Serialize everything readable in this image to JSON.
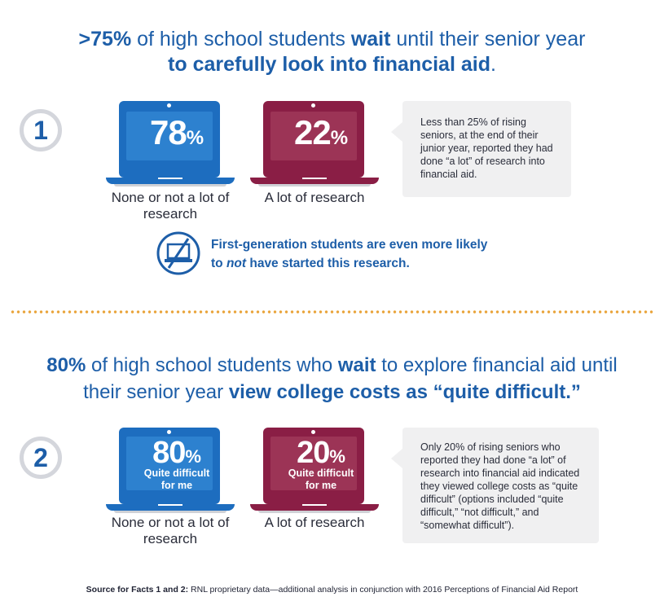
{
  "fact1": {
    "headline": {
      "line1_bold_a": ">75%",
      "line1_text": " of high school students ",
      "line1_bold_b": "wait",
      "line1_text_b": " until their senior year",
      "line2_bold": "to carefully look into financial aid",
      "line2_end": "."
    },
    "number": "1",
    "laptops": [
      {
        "value": "78",
        "symbol": "%",
        "caption": "None or not a lot of research"
      },
      {
        "value": "22",
        "symbol": "%",
        "caption": "A lot of research"
      }
    ],
    "note": "Less than 25% of rising seniors, at the end of their junior year, reported they had done “a lot” of research into financial aid.",
    "first_gen": {
      "line1": "First-generation students are even more likely",
      "line2_pre": "to ",
      "line2_em": "not",
      "line2_post": " have started this research."
    }
  },
  "fact2": {
    "headline": {
      "line1_bold_a": "80%",
      "line1_text": " of high school students who ",
      "line1_bold_b": "wait",
      "line1_text_b": " to explore financial aid  until",
      "line2_text": "their senior year ",
      "line2_bold": "view college costs as “quite difficult.”"
    },
    "number": "2",
    "laptops": [
      {
        "value": "80",
        "symbol": "%",
        "sub1": "Quite difficult",
        "sub2": "for me",
        "caption": "None or not a lot of research"
      },
      {
        "value": "20",
        "symbol": "%",
        "sub1": "Quite difficult",
        "sub2": "for me",
        "caption": "A lot of research"
      }
    ],
    "note": "Only 20% of rising seniors who reported they had done “a lot” of research into financial aid indicated they viewed college costs as “quite difficult” (options included “quite difficult,” “not difficult,” and “somewhat difficult”)."
  },
  "source": {
    "label": "Source for Facts 1 and 2:",
    "text": " RNL proprietary data—additional analysis in conjunction with 2016 Perceptions of Financial Aid Report"
  },
  "colors": {
    "blue": "#1d6dbf",
    "maroon": "#8a1e45",
    "headline": "#1d5ea8",
    "dots": "#e9a43a"
  }
}
